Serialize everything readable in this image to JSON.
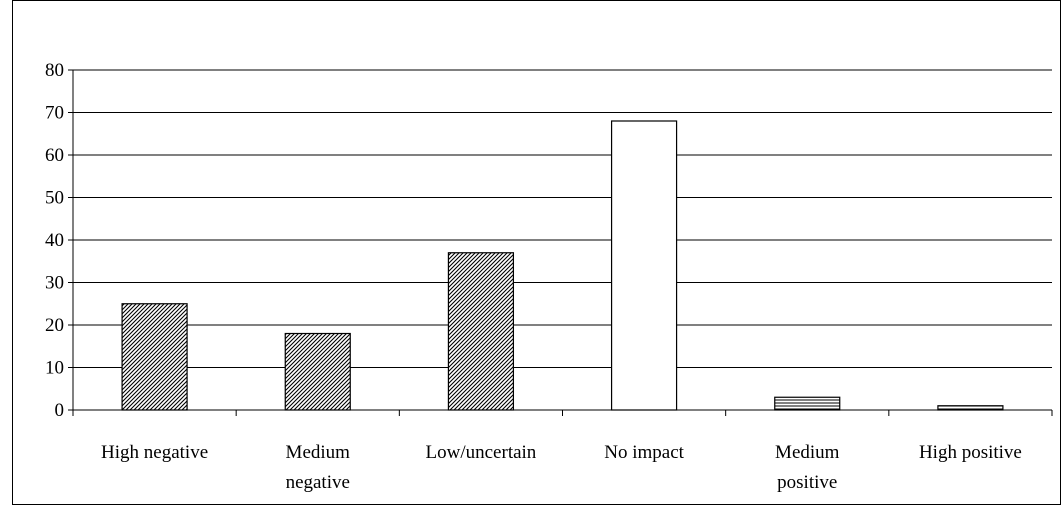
{
  "chart_data": {
    "type": "bar",
    "title": "",
    "xlabel": "",
    "ylabel": "",
    "categories": [
      [
        "High negative"
      ],
      [
        "Medium",
        "negative"
      ],
      [
        "Low/uncertain"
      ],
      [
        "No impact"
      ],
      [
        "Medium",
        "positive"
      ],
      [
        "High positive"
      ]
    ],
    "values": [
      25,
      18,
      37,
      68,
      3,
      1
    ],
    "bar_patterns": [
      "diagonal",
      "diagonal",
      "diagonal",
      "none",
      "horizontal",
      "horizontal"
    ],
    "ylim": [
      0,
      80
    ],
    "yticks": [
      0,
      10,
      20,
      30,
      40,
      50,
      60,
      70,
      80
    ],
    "grid": true,
    "legend": "none",
    "colors": {
      "bar_fill": "#ffffff",
      "bar_stroke": "#000000",
      "grid": "#000000",
      "axis": "#000000"
    }
  }
}
